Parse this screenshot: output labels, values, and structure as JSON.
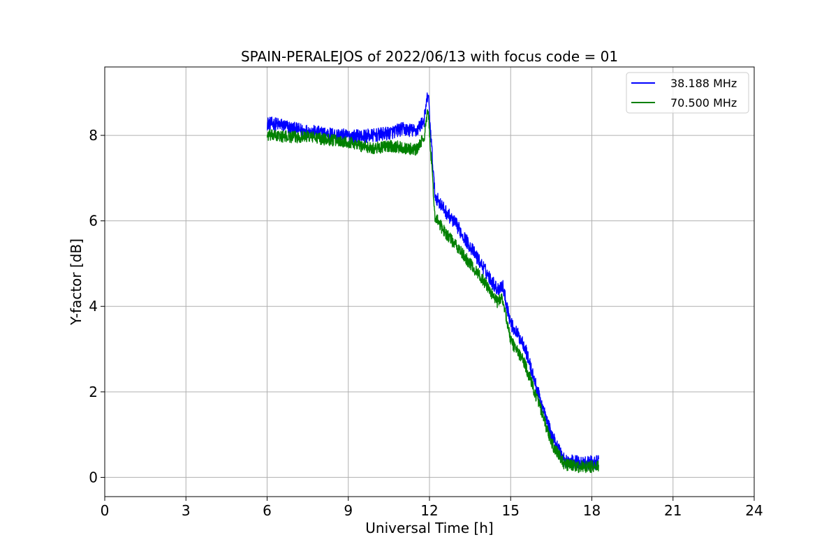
{
  "chart_data": {
    "type": "line",
    "title": "SPAIN-PERALEJOS of 2022/06/13 with focus code = 01",
    "xlabel": "Universal Time [h]",
    "ylabel": "Y-factor [dB]",
    "xlim": [
      0,
      24
    ],
    "ylim": [
      -0.45,
      9.6
    ],
    "xticks": [
      0,
      3,
      6,
      9,
      12,
      15,
      18,
      21,
      24
    ],
    "yticks": [
      0,
      2,
      4,
      6,
      8
    ],
    "grid": true,
    "legend_position": "top-right",
    "series": [
      {
        "name": "38.188 MHz",
        "color": "#0000ff",
        "noise": 0.16,
        "points": [
          [
            6.0,
            8.28
          ],
          [
            6.5,
            8.25
          ],
          [
            7.0,
            8.15
          ],
          [
            7.5,
            8.1
          ],
          [
            8.0,
            8.05
          ],
          [
            8.5,
            8.02
          ],
          [
            9.0,
            7.98
          ],
          [
            9.5,
            7.98
          ],
          [
            10.0,
            8.0
          ],
          [
            10.5,
            8.05
          ],
          [
            11.0,
            8.15
          ],
          [
            11.5,
            8.1
          ],
          [
            11.8,
            8.35
          ],
          [
            11.95,
            9.0
          ],
          [
            12.05,
            8.0
          ],
          [
            12.2,
            6.6
          ],
          [
            12.5,
            6.3
          ],
          [
            13.0,
            5.9
          ],
          [
            13.5,
            5.4
          ],
          [
            14.0,
            4.9
          ],
          [
            14.5,
            4.4
          ],
          [
            14.7,
            4.5
          ],
          [
            15.0,
            3.6
          ],
          [
            15.5,
            3.1
          ],
          [
            16.0,
            2.0
          ],
          [
            16.5,
            1.0
          ],
          [
            17.0,
            0.4
          ],
          [
            17.5,
            0.35
          ],
          [
            18.0,
            0.35
          ],
          [
            18.25,
            0.35
          ]
        ]
      },
      {
        "name": "70.500 MHz",
        "color": "#008000",
        "noise": 0.14,
        "points": [
          [
            6.0,
            8.0
          ],
          [
            6.5,
            7.98
          ],
          [
            7.0,
            7.96
          ],
          [
            7.5,
            7.98
          ],
          [
            8.0,
            7.92
          ],
          [
            8.5,
            7.88
          ],
          [
            9.0,
            7.85
          ],
          [
            9.5,
            7.75
          ],
          [
            10.0,
            7.7
          ],
          [
            10.5,
            7.75
          ],
          [
            11.0,
            7.72
          ],
          [
            11.5,
            7.65
          ],
          [
            11.8,
            7.95
          ],
          [
            11.95,
            8.6
          ],
          [
            12.05,
            7.6
          ],
          [
            12.2,
            6.1
          ],
          [
            12.5,
            5.8
          ],
          [
            13.0,
            5.4
          ],
          [
            13.5,
            5.0
          ],
          [
            14.0,
            4.6
          ],
          [
            14.5,
            4.1
          ],
          [
            14.7,
            4.2
          ],
          [
            15.0,
            3.2
          ],
          [
            15.5,
            2.7
          ],
          [
            16.0,
            1.8
          ],
          [
            16.5,
            0.8
          ],
          [
            17.0,
            0.3
          ],
          [
            17.5,
            0.25
          ],
          [
            18.0,
            0.25
          ],
          [
            18.25,
            0.25
          ]
        ]
      }
    ]
  }
}
